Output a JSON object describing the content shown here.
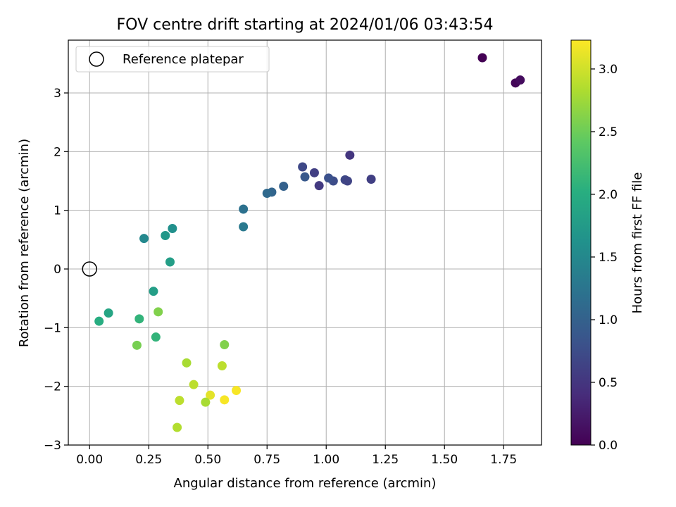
{
  "chart_data": {
    "type": "scatter",
    "title": "FOV centre drift starting at 2024/01/06 03:43:54",
    "xlabel": "Angular distance from reference (arcmin)",
    "ylabel": "Rotation from reference (arcmin)",
    "xlim": [
      -0.09,
      1.91
    ],
    "ylim": [
      -3.0,
      3.9
    ],
    "xticks": [
      0.0,
      0.25,
      0.5,
      0.75,
      1.0,
      1.25,
      1.5,
      1.75
    ],
    "xtick_labels": [
      "0.00",
      "0.25",
      "0.50",
      "0.75",
      "1.00",
      "1.25",
      "1.50",
      "1.75"
    ],
    "yticks": [
      -3,
      -2,
      -1,
      0,
      1,
      2,
      3
    ],
    "ytick_labels": [
      "−3",
      "−2",
      "−1",
      "0",
      "1",
      "2",
      "3"
    ],
    "grid": true,
    "legend": {
      "position": "top-left",
      "entries": [
        "Reference platepar"
      ]
    },
    "reference_point": {
      "x": 0.0,
      "y": 0.0,
      "label": "Reference platepar"
    },
    "colormap": "viridis",
    "colorbar": {
      "label": "Hours from first FF file",
      "range": [
        0.0,
        3.23
      ],
      "ticks": [
        0.0,
        0.5,
        1.0,
        1.5,
        2.0,
        2.5,
        3.0
      ],
      "tick_labels": [
        "0.0",
        "0.5",
        "1.0",
        "1.5",
        "2.0",
        "2.5",
        "3.0"
      ]
    },
    "points": [
      {
        "x": 1.66,
        "y": 3.6,
        "c": 0.0
      },
      {
        "x": 1.8,
        "y": 3.17,
        "c": 0.05
      },
      {
        "x": 1.82,
        "y": 3.22,
        "c": 0.1
      },
      {
        "x": 1.1,
        "y": 1.94,
        "c": 0.5
      },
      {
        "x": 1.19,
        "y": 1.53,
        "c": 0.6
      },
      {
        "x": 1.08,
        "y": 1.52,
        "c": 0.7
      },
      {
        "x": 1.09,
        "y": 1.5,
        "c": 0.65
      },
      {
        "x": 1.03,
        "y": 1.5,
        "c": 0.75
      },
      {
        "x": 1.01,
        "y": 1.55,
        "c": 0.8
      },
      {
        "x": 0.95,
        "y": 1.64,
        "c": 0.6
      },
      {
        "x": 0.97,
        "y": 1.42,
        "c": 0.55
      },
      {
        "x": 0.9,
        "y": 1.74,
        "c": 0.7
      },
      {
        "x": 0.91,
        "y": 1.57,
        "c": 0.9
      },
      {
        "x": 0.82,
        "y": 1.41,
        "c": 1.0
      },
      {
        "x": 0.77,
        "y": 1.31,
        "c": 1.05
      },
      {
        "x": 0.75,
        "y": 1.29,
        "c": 1.1
      },
      {
        "x": 0.65,
        "y": 1.02,
        "c": 1.2
      },
      {
        "x": 0.65,
        "y": 0.72,
        "c": 1.3
      },
      {
        "x": 0.35,
        "y": 0.69,
        "c": 1.6
      },
      {
        "x": 0.32,
        "y": 0.57,
        "c": 1.7
      },
      {
        "x": 0.23,
        "y": 0.52,
        "c": 1.5
      },
      {
        "x": 0.34,
        "y": 0.12,
        "c": 1.8
      },
      {
        "x": 0.27,
        "y": -0.38,
        "c": 1.8
      },
      {
        "x": 0.08,
        "y": -0.75,
        "c": 1.9
      },
      {
        "x": 0.04,
        "y": -0.89,
        "c": 2.0
      },
      {
        "x": 0.21,
        "y": -0.85,
        "c": 2.1
      },
      {
        "x": 0.29,
        "y": -0.73,
        "c": 2.6
      },
      {
        "x": 0.28,
        "y": -1.16,
        "c": 2.1
      },
      {
        "x": 0.2,
        "y": -1.3,
        "c": 2.55
      },
      {
        "x": 0.57,
        "y": -1.29,
        "c": 2.6
      },
      {
        "x": 0.41,
        "y": -1.6,
        "c": 2.8
      },
      {
        "x": 0.56,
        "y": -1.65,
        "c": 2.9
      },
      {
        "x": 0.44,
        "y": -1.97,
        "c": 2.9
      },
      {
        "x": 0.51,
        "y": -2.15,
        "c": 3.1
      },
      {
        "x": 0.62,
        "y": -2.07,
        "c": 3.2
      },
      {
        "x": 0.38,
        "y": -2.24,
        "c": 2.9
      },
      {
        "x": 0.49,
        "y": -2.27,
        "c": 2.8
      },
      {
        "x": 0.57,
        "y": -2.23,
        "c": 3.2
      },
      {
        "x": 0.37,
        "y": -2.7,
        "c": 2.85
      }
    ]
  }
}
